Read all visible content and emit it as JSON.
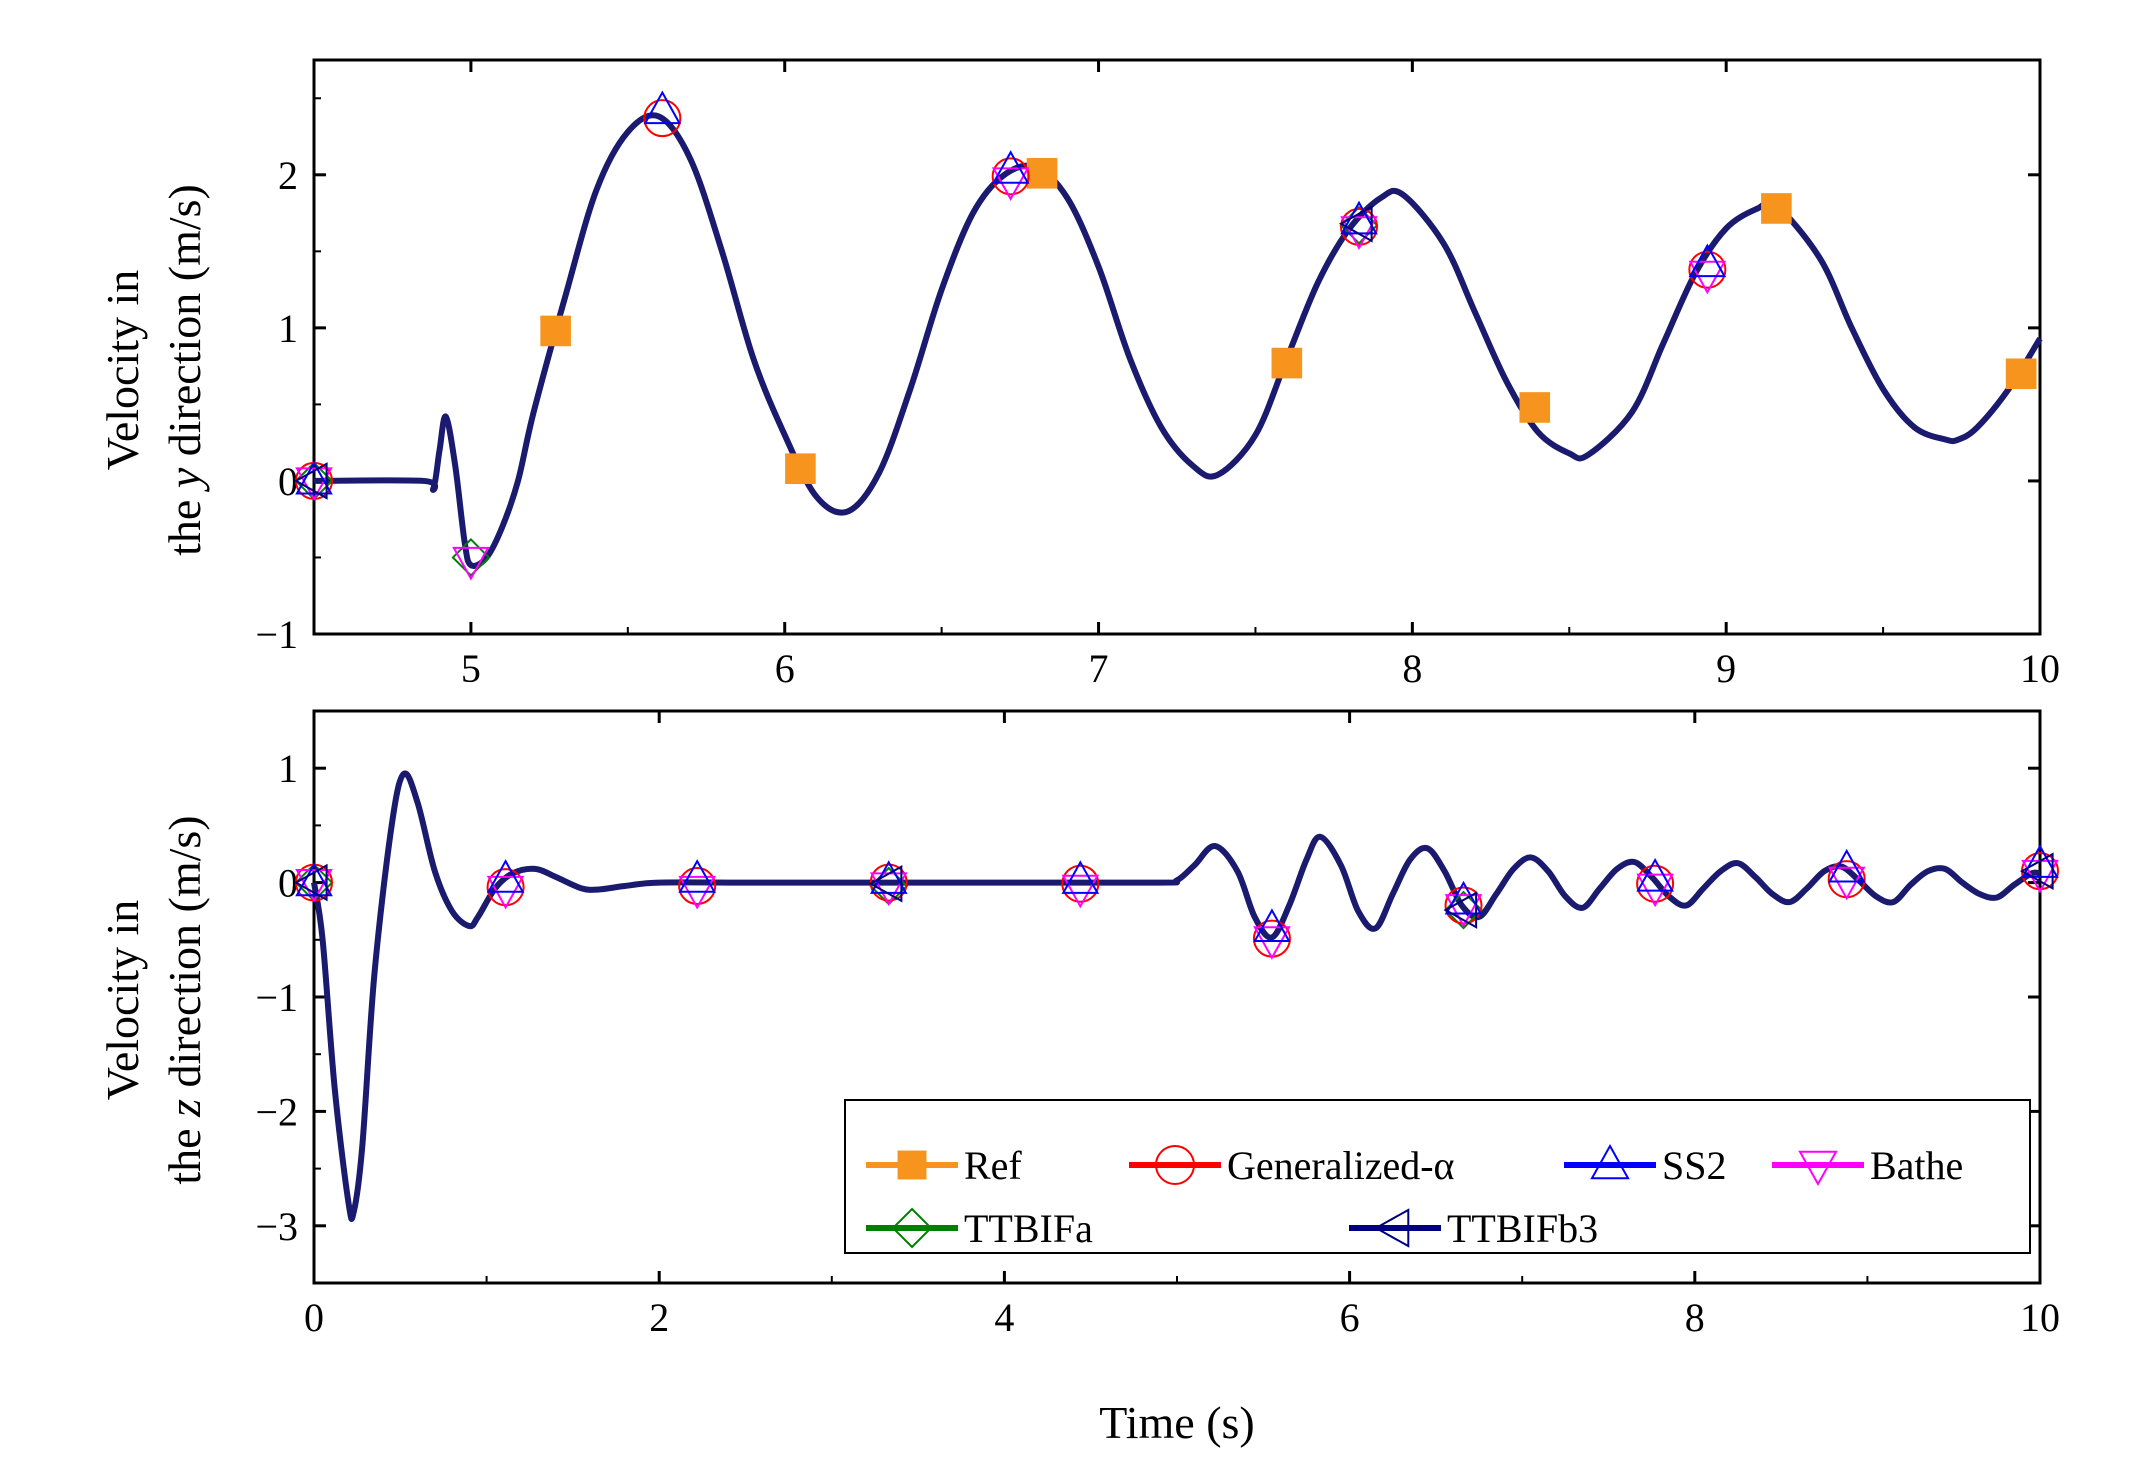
{
  "chart_data": [
    {
      "type": "line",
      "panel": "top",
      "ylabel_line1": "Velocity in",
      "ylabel_line2_prefix": "the ",
      "ylabel_line2_var": "y",
      "ylabel_line2_suffix": " direction (m/s)",
      "xlim": [
        4.5,
        10
      ],
      "ylim": [
        -1,
        2.75
      ],
      "xticks": [
        5,
        6,
        7,
        8,
        9,
        10
      ],
      "xtick_labels": [
        "5",
        "6",
        "7",
        "8",
        "9",
        "10"
      ],
      "yticks": [
        -1,
        0,
        1,
        2
      ],
      "ytick_labels": [
        "−1",
        "0",
        "1",
        "2"
      ],
      "curve": {
        "x": [
          4.5,
          4.85,
          4.88,
          4.9,
          4.92,
          4.95,
          4.98,
          5.0,
          5.05,
          5.1,
          5.15,
          5.2,
          5.3,
          5.4,
          5.5,
          5.6,
          5.7,
          5.8,
          5.9,
          6.0,
          6.1,
          6.2,
          6.3,
          6.4,
          6.5,
          6.6,
          6.7,
          6.8,
          6.9,
          7.0,
          7.1,
          7.2,
          7.3,
          7.38,
          7.5,
          7.6,
          7.7,
          7.8,
          7.9,
          7.97,
          8.1,
          8.2,
          8.3,
          8.4,
          8.5,
          8.56,
          8.7,
          8.8,
          8.9,
          9.0,
          9.1,
          9.16,
          9.3,
          9.4,
          9.5,
          9.6,
          9.7,
          9.74,
          9.8,
          9.9,
          10.0
        ],
        "y": [
          0,
          0,
          -0.05,
          0.2,
          0.42,
          0.1,
          -0.4,
          -0.55,
          -0.5,
          -0.3,
          0,
          0.45,
          1.2,
          1.9,
          2.28,
          2.38,
          2.1,
          1.5,
          0.8,
          0.3,
          -0.1,
          -0.2,
          0.05,
          0.6,
          1.25,
          1.75,
          2.0,
          2.05,
          1.85,
          1.4,
          0.8,
          0.35,
          0.1,
          0.04,
          0.3,
          0.8,
          1.3,
          1.65,
          1.85,
          1.87,
          1.55,
          1.1,
          0.65,
          0.32,
          0.18,
          0.17,
          0.45,
          0.9,
          1.35,
          1.65,
          1.78,
          1.8,
          1.45,
          1.0,
          0.6,
          0.35,
          0.27,
          0.27,
          0.35,
          0.6,
          0.93
        ]
      },
      "markers": {
        "Ref": {
          "x": [
            5.27,
            6.05,
            6.82,
            7.6,
            8.39,
            9.16,
            9.94
          ],
          "y": [
            0.98,
            0.08,
            2.01,
            0.77,
            0.48,
            1.78,
            0.7
          ]
        },
        "Generalized-α": {
          "x": [
            4.5,
            5.61,
            6.72,
            7.83,
            8.94
          ],
          "y": [
            0,
            2.37,
            1.99,
            1.66,
            1.38
          ]
        },
        "SS2": {
          "x": [
            4.5,
            5.61,
            6.72,
            7.83,
            8.94
          ],
          "y": [
            0,
            2.42,
            2.03,
            1.7,
            1.42
          ]
        },
        "Bathe": {
          "x": [
            4.5,
            5.0,
            6.72,
            7.83,
            8.94
          ],
          "y": [
            0,
            -0.52,
            1.96,
            1.64,
            1.35
          ]
        },
        "TTBIFa": {
          "x": [
            4.5,
            5.0,
            7.83
          ],
          "y": [
            0,
            -0.5,
            1.67
          ]
        },
        "TTBIFb3": {
          "x": [
            4.5,
            7.83
          ],
          "y": [
            0,
            1.68
          ]
        }
      }
    },
    {
      "type": "line",
      "panel": "bottom",
      "ylabel_line1": "Velocity in",
      "ylabel_line2_prefix": "the ",
      "ylabel_line2_var": "z",
      "ylabel_line2_suffix": " direction (m/s)",
      "xlabel": "Time (s)",
      "xlim": [
        0,
        10
      ],
      "ylim": [
        -3.5,
        1.5
      ],
      "xticks": [
        0,
        2,
        4,
        6,
        8,
        10
      ],
      "xtick_labels": [
        "0",
        "2",
        "4",
        "6",
        "8",
        "10"
      ],
      "yticks": [
        -3,
        -2,
        -1,
        0,
        1
      ],
      "ytick_labels": [
        "−3",
        "−2",
        "−1",
        "0",
        "1"
      ],
      "curve": {
        "x": [
          0,
          0.05,
          0.12,
          0.2,
          0.23,
          0.28,
          0.35,
          0.45,
          0.52,
          0.6,
          0.7,
          0.8,
          0.9,
          0.95,
          1.05,
          1.15,
          1.28,
          1.4,
          1.55,
          1.65,
          1.8,
          2.0,
          2.5,
          3.0,
          4.0,
          4.9,
          5.0,
          5.1,
          5.22,
          5.35,
          5.45,
          5.55,
          5.65,
          5.75,
          5.83,
          5.95,
          6.05,
          6.15,
          6.25,
          6.35,
          6.45,
          6.55,
          6.65,
          6.75,
          6.85,
          6.95,
          7.05,
          7.15,
          7.25,
          7.35,
          7.45,
          7.55,
          7.65,
          7.75,
          7.85,
          7.95,
          8.05,
          8.15,
          8.25,
          8.35,
          8.45,
          8.55,
          8.65,
          8.75,
          8.85,
          8.95,
          9.05,
          9.15,
          9.25,
          9.35,
          9.45,
          9.55,
          9.65,
          9.75,
          9.85,
          9.95,
          10.0
        ],
        "y": [
          0,
          -0.5,
          -1.8,
          -2.8,
          -2.88,
          -2.3,
          -0.8,
          0.5,
          0.95,
          0.7,
          0.1,
          -0.25,
          -0.38,
          -0.3,
          -0.05,
          0.08,
          0.12,
          0.05,
          -0.05,
          -0.06,
          -0.03,
          0,
          0,
          0,
          0,
          0,
          0.02,
          0.15,
          0.32,
          0.1,
          -0.3,
          -0.48,
          -0.2,
          0.2,
          0.4,
          0.15,
          -0.25,
          -0.4,
          -0.1,
          0.2,
          0.3,
          0.1,
          -0.2,
          -0.3,
          -0.1,
          0.12,
          0.22,
          0.1,
          -0.12,
          -0.22,
          -0.05,
          0.12,
          0.18,
          0.05,
          -0.12,
          -0.2,
          -0.05,
          0.1,
          0.17,
          0.05,
          -0.1,
          -0.17,
          -0.05,
          0.1,
          0.14,
          0.02,
          -0.12,
          -0.17,
          -0.02,
          0.1,
          0.12,
          0,
          -0.1,
          -0.13,
          -0.02,
          0.08,
          0.08
        ]
      },
      "markers": {
        "Generalized-α": {
          "x": [
            0,
            1.11,
            2.22,
            3.33,
            4.44,
            5.55,
            6.66,
            7.77,
            8.88,
            10.0
          ],
          "y": [
            0,
            -0.04,
            -0.03,
            0,
            -0.01,
            -0.49,
            -0.2,
            -0.01,
            0.03,
            0.1
          ]
        },
        "SS2": {
          "x": [
            0,
            1.11,
            2.22,
            3.33,
            4.44,
            5.55,
            6.66,
            7.77,
            8.88,
            10.0
          ],
          "y": [
            0,
            0.03,
            0.03,
            0.02,
            0.02,
            -0.4,
            -0.16,
            0.04,
            0.12,
            0.16
          ]
        },
        "Bathe": {
          "x": [
            0,
            1.11,
            2.22,
            3.33,
            4.44,
            5.55,
            6.66,
            7.77,
            8.88,
            10.0
          ],
          "y": [
            0,
            -0.06,
            -0.06,
            -0.03,
            -0.05,
            -0.5,
            -0.22,
            -0.04,
            0.02,
            0.08
          ]
        },
        "TTBIFa": {
          "x": [
            0,
            3.33,
            6.66
          ],
          "y": [
            0,
            -0.03,
            -0.24
          ]
        },
        "TTBIFb3": {
          "x": [
            0,
            3.33,
            6.66,
            10.0
          ],
          "y": [
            0,
            -0.01,
            -0.24,
            0.1
          ]
        }
      }
    }
  ],
  "legend": [
    {
      "label": "Ref",
      "marker": "square",
      "color": "#f7941d"
    },
    {
      "label": "Generalized-α",
      "marker": "circle",
      "color": "#ff0000"
    },
    {
      "label": "SS2",
      "marker": "triangle-up",
      "color": "#0000ff"
    },
    {
      "label": "Bathe",
      "marker": "triangle-down",
      "color": "#ff00ff"
    },
    {
      "label": "TTBIFa",
      "marker": "diamond",
      "color": "#008000"
    },
    {
      "label": "TTBIFb3",
      "marker": "triangle-left",
      "color": "#000080"
    }
  ],
  "colors": {
    "curve": "#1a1a6e"
  }
}
